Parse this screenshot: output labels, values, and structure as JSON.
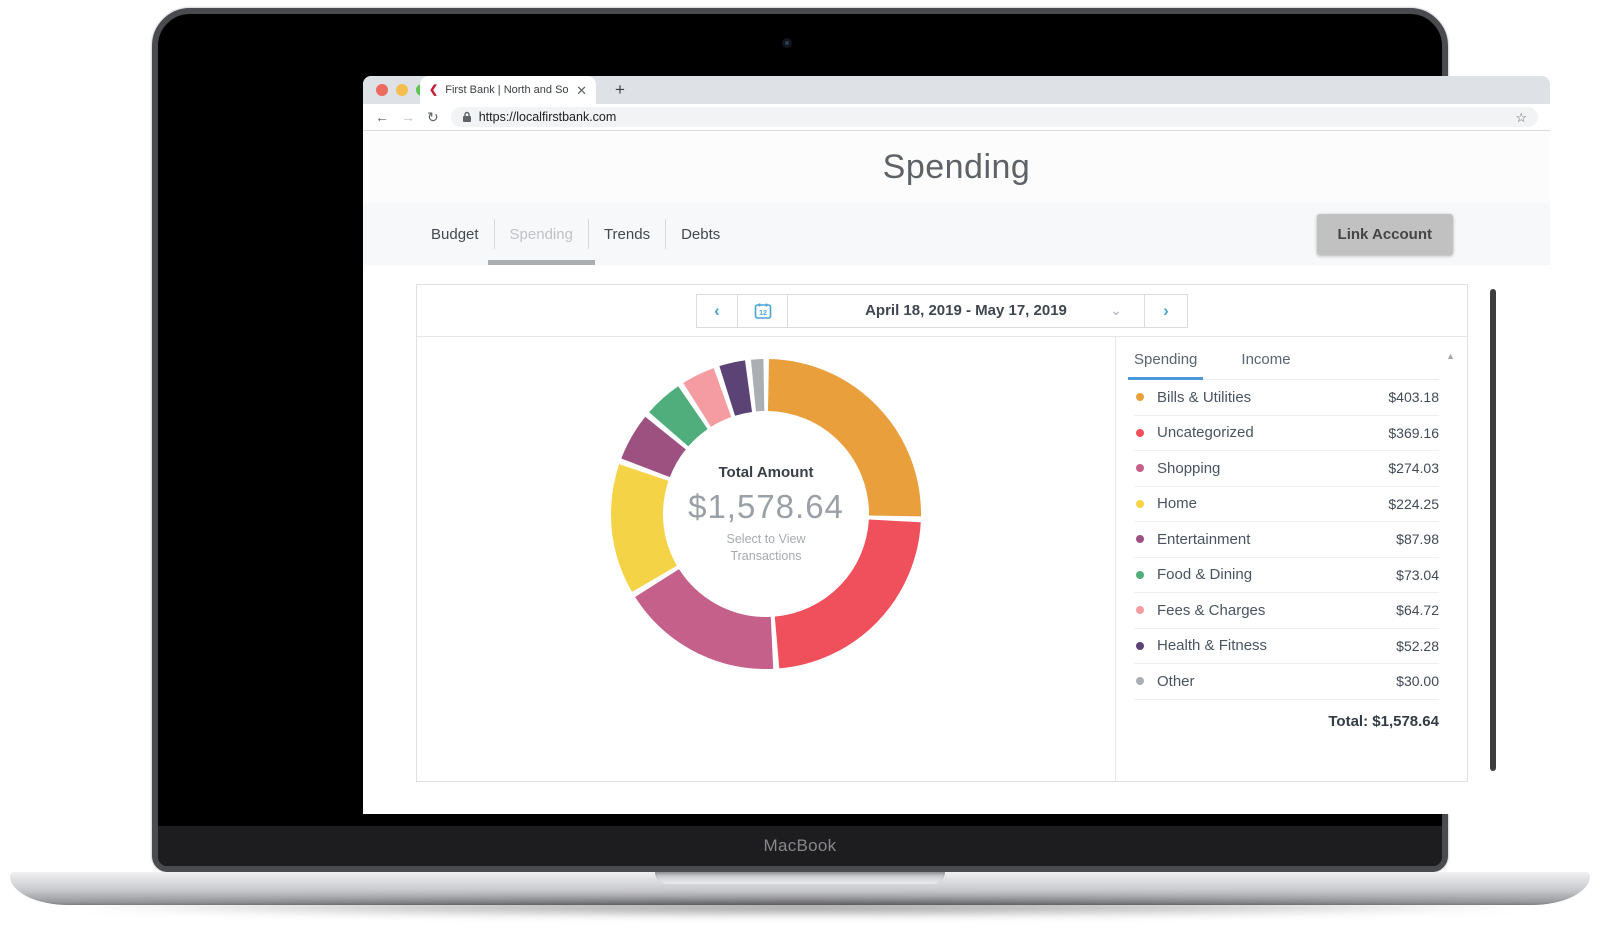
{
  "browser": {
    "tab_title": "First Bank | North and South C",
    "url": "https://localfirstbank.com",
    "icons": {
      "favicon": "❮",
      "close_tab": "✕",
      "new_tab": "+",
      "back": "←",
      "forward": "→",
      "refresh": "↻",
      "lock": "🔒",
      "star": "☆"
    },
    "traffic_lights": {
      "red": "#ED6A5E",
      "yellow": "#F5BF4F",
      "green": "#61C554"
    }
  },
  "page": {
    "title": "Spending",
    "nav_tabs": [
      {
        "label": "Budget",
        "active": false
      },
      {
        "label": "Spending",
        "active": true
      },
      {
        "label": "Trends",
        "active": false
      },
      {
        "label": "Debts",
        "active": false
      }
    ],
    "link_account_label": "Link Account"
  },
  "date_picker": {
    "range_label": "April 18, 2019 - May 17, 2019",
    "calendar_day": "12",
    "icons": {
      "prev": "‹",
      "next": "›",
      "caret_down": "⌄"
    }
  },
  "donut_center": {
    "title": "Total Amount",
    "amount": "$1,578.64",
    "subtitle": "Select to View Transactions"
  },
  "panel": {
    "tabs": [
      {
        "label": "Spending",
        "active": true
      },
      {
        "label": "Income",
        "active": false
      }
    ],
    "scroll_up_icon": "▲",
    "categories": [
      {
        "label": "Bills & Utilities",
        "amount": "$403.18",
        "color": "#E9A03C"
      },
      {
        "label": "Uncategorized",
        "amount": "$369.16",
        "color": "#F0505C"
      },
      {
        "label": "Shopping",
        "amount": "$274.03",
        "color": "#C4608A"
      },
      {
        "label": "Home",
        "amount": "$224.25",
        "color": "#F5D347"
      },
      {
        "label": "Entertainment",
        "amount": "$87.98",
        "color": "#9C5180"
      },
      {
        "label": "Food & Dining",
        "amount": "$73.04",
        "color": "#4FAE7C"
      },
      {
        "label": "Fees & Charges",
        "amount": "$64.72",
        "color": "#F49CA2"
      },
      {
        "label": "Health & Fitness",
        "amount": "$52.28",
        "color": "#5B4375"
      },
      {
        "label": "Other",
        "amount": "$30.00",
        "color": "#ABAEB2"
      }
    ],
    "total_label": "Total: $1,578.64"
  },
  "chart_data": {
    "type": "pie",
    "subtype": "donut",
    "title": "Total Amount",
    "center_amount": "$1,578.64",
    "center_subtitle": "Select to View Transactions",
    "categories": [
      "Bills & Utilities",
      "Uncategorized",
      "Shopping",
      "Home",
      "Entertainment",
      "Food & Dining",
      "Fees & Charges",
      "Health & Fitness",
      "Other"
    ],
    "values": [
      403.18,
      369.16,
      274.03,
      224.25,
      87.98,
      73.04,
      64.72,
      52.28,
      30.0
    ],
    "colors": [
      "#E9A03C",
      "#F0505C",
      "#C4608A",
      "#F5D347",
      "#9C5180",
      "#4FAE7C",
      "#F49CA2",
      "#5B4375",
      "#ABAEB2"
    ],
    "total": 1578.64,
    "start_angle_deg": -90,
    "direction": "clockwise",
    "legend_position": "right"
  },
  "device": {
    "brand_label": "MacBook"
  }
}
